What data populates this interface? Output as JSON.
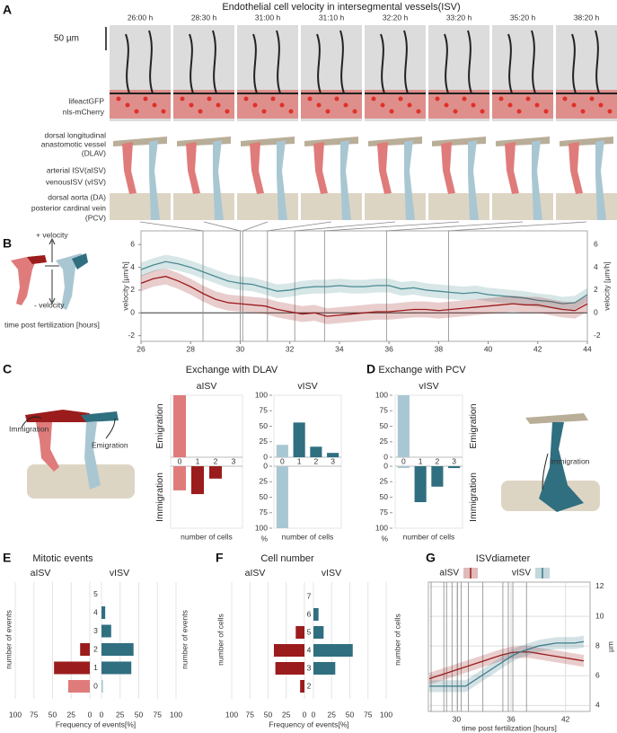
{
  "figure": {
    "title": "Endothelial cell velocity  in intersegmental vessels(ISV)",
    "panel_labels": [
      "A",
      "B",
      "C",
      "D",
      "E",
      "F",
      "G"
    ],
    "time_labels": [
      "26:00 h",
      "28:30 h",
      "31:00 h",
      "31:10 h",
      "32:20 h",
      "33:20 h",
      "35:20 h",
      "38:20 h"
    ],
    "scale_bar": "50 µm",
    "channels": [
      {
        "label": "lifeactGFP",
        "color": "#333333"
      },
      {
        "label": "nls-mCherry",
        "color": "#e0302a"
      }
    ],
    "schematic_labels": [
      "dorsal longitudinal",
      "anastomotic vessel",
      "(DLAV)",
      "arterial ISV(aISV)",
      "venousISV  (vISV)",
      "dorsal aorta (DA)",
      "posterior cardinal vein",
      "(PCV)"
    ],
    "c_annotations": [
      "Immigration",
      "Emigration"
    ],
    "d_annotation": "Immigration"
  },
  "chart_data": [
    {
      "type": "line",
      "x": [
        26,
        26.5,
        27,
        27.5,
        28,
        28.5,
        29,
        29.5,
        30,
        30.5,
        31,
        31.5,
        32,
        32.5,
        33,
        33.5,
        34,
        34.5,
        35,
        35.5,
        36,
        36.5,
        37,
        37.5,
        38,
        38.5,
        39,
        39.5,
        40,
        40.5,
        41,
        41.5,
        42,
        42.5,
        43,
        43.5,
        44
      ],
      "xlim": [
        26,
        44
      ],
      "xticks": [
        26,
        28,
        30,
        32,
        34,
        36,
        38,
        40,
        42,
        44
      ],
      "ylim": [
        -2.5,
        7.2
      ],
      "yticks": [
        -2,
        0,
        2,
        4,
        6
      ],
      "ylabel": "velocity [µm/h]",
      "xlabel": "time post fertilization [hours]",
      "annotations": [
        "+ velocity",
        "- velocity"
      ],
      "markers": [
        28.5,
        30,
        30.1,
        31.1,
        32.2,
        33.4,
        35.9,
        38.4
      ],
      "series": [
        {
          "color": "#4a8b92",
          "error": 0.6,
          "values": [
            3.8,
            4.2,
            4.5,
            4.3,
            4.0,
            3.6,
            3.2,
            2.8,
            2.6,
            2.5,
            2.2,
            1.9,
            2.0,
            2.2,
            2.3,
            2.3,
            2.4,
            2.3,
            2.3,
            2.4,
            2.4,
            2.1,
            2.2,
            2.0,
            1.9,
            1.8,
            1.7,
            1.8,
            1.6,
            1.5,
            1.4,
            1.3,
            1.1,
            1.0,
            0.8,
            0.9,
            1.6
          ]
        },
        {
          "color": "#9b1c1c",
          "error": 0.7,
          "values": [
            2.6,
            3.0,
            3.2,
            2.8,
            2.3,
            1.7,
            1.2,
            0.9,
            0.8,
            0.7,
            0.6,
            0.3,
            0.1,
            -0.1,
            0.0,
            -0.3,
            -0.2,
            -0.1,
            0.0,
            0.1,
            0.1,
            0.2,
            0.3,
            0.3,
            0.2,
            0.3,
            0.4,
            0.5,
            0.6,
            0.7,
            0.8,
            0.7,
            0.7,
            0.5,
            0.3,
            0.2,
            0.8
          ]
        }
      ]
    },
    {
      "type": "mirrored-bar",
      "title": "Exchange with DLAV",
      "ylim": [
        0,
        100
      ],
      "yticks": [
        0,
        25,
        50,
        75,
        100
      ],
      "ylabel": "%",
      "xlabel": "number of cells",
      "panels": [
        {
          "title": "aISV",
          "categories": [
            0,
            1,
            2,
            3
          ],
          "series": [
            {
              "name": "Emigration",
              "values": [
                100,
                0,
                0,
                0
              ],
              "colors": [
                "#e07b7b",
                "#9b1c1c",
                "#9b1c1c",
                "#9b1c1c"
              ]
            },
            {
              "name": "Immigration",
              "values": [
                39,
                45,
                20,
                0
              ],
              "colors": [
                "#e07b7b",
                "#9b1c1c",
                "#9b1c1c",
                "#9b1c1c"
              ]
            }
          ]
        },
        {
          "title": "vISV",
          "categories": [
            0,
            1,
            2,
            3
          ],
          "series": [
            {
              "name": "Emigration",
              "values": [
                20,
                56,
                17,
                7
              ],
              "colors": [
                "#a9c7d2",
                "#2f6f80",
                "#2f6f80",
                "#2f6f80"
              ]
            },
            {
              "name": "Immigration",
              "values": [
                100,
                0,
                0,
                0
              ],
              "colors": [
                "#a9c7d2",
                "#2f6f80",
                "#2f6f80",
                "#2f6f80"
              ]
            }
          ]
        }
      ]
    },
    {
      "type": "mirrored-bar",
      "title": "Exchange with PCV",
      "ylim": [
        0,
        100
      ],
      "yticks": [
        0,
        25,
        50,
        75,
        100
      ],
      "ylabel": "%",
      "xlabel": "number of cells",
      "panels": [
        {
          "title": "vISV",
          "categories": [
            0,
            1,
            2,
            3
          ],
          "series": [
            {
              "name": "Emigration",
              "values": [
                100,
                0,
                0,
                0
              ],
              "colors": [
                "#a9c7d2",
                "#2f6f80",
                "#2f6f80",
                "#2f6f80"
              ]
            },
            {
              "name": "Immigration",
              "values": [
                3,
                58,
                33,
                3
              ],
              "colors": [
                "#a9c7d2",
                "#2f6f80",
                "#2f6f80",
                "#2f6f80"
              ]
            }
          ]
        }
      ]
    },
    {
      "type": "butterfly-bar",
      "title": "Mitotic events",
      "categories": [
        0,
        1,
        2,
        3,
        4,
        5
      ],
      "xlim": [
        0,
        100
      ],
      "xticks": [
        0,
        25,
        50,
        75,
        100
      ],
      "xlabel": "Frequency of events[%]",
      "ylabel": "number of events",
      "grid": true,
      "series": [
        {
          "name": "aISV",
          "values": [
            29,
            48,
            13,
            0,
            0,
            0
          ],
          "colors": [
            "#e07b7b",
            "#9b1c1c",
            "#9b1c1c",
            "#9b1c1c",
            "#9b1c1c",
            "#9b1c1c"
          ]
        },
        {
          "name": "vISV",
          "values": [
            2,
            40,
            43,
            13,
            5,
            0
          ],
          "colors": [
            "#a9c7d2",
            "#2f6f80",
            "#2f6f80",
            "#2f6f80",
            "#2f6f80",
            "#2f6f80"
          ]
        }
      ]
    },
    {
      "type": "butterfly-bar",
      "title": "Cell number",
      "categories": [
        2,
        3,
        4,
        5,
        6,
        7
      ],
      "xlim": [
        0,
        100
      ],
      "xticks": [
        0,
        25,
        50,
        75,
        100
      ],
      "xlabel": "Frequency of events[%]",
      "ylabel": "number of cells",
      "grid": true,
      "series": [
        {
          "name": "aISV",
          "values": [
            6,
            40,
            42,
            12,
            0,
            0
          ],
          "colors": [
            "#9b1c1c",
            "#9b1c1c",
            "#9b1c1c",
            "#9b1c1c",
            "#9b1c1c",
            "#9b1c1c"
          ]
        },
        {
          "name": "vISV",
          "values": [
            0,
            30,
            54,
            14,
            7,
            0
          ],
          "colors": [
            "#2f6f80",
            "#2f6f80",
            "#2f6f80",
            "#2f6f80",
            "#2f6f80",
            "#2f6f80"
          ]
        }
      ]
    },
    {
      "type": "line",
      "title": "ISVdiameter",
      "x": [
        27,
        28,
        29,
        30,
        31,
        32,
        33,
        34,
        35,
        36,
        37,
        38,
        39,
        40,
        41,
        42,
        43,
        44
      ],
      "xlim": [
        26.9,
        44.7
      ],
      "xticks": [
        30,
        36,
        42
      ],
      "ylim": [
        3.6,
        12.3
      ],
      "yticks": [
        4,
        6,
        8,
        10,
        12
      ],
      "ylabel": "µm",
      "xlabel": "time post fertilization [hours]",
      "legend": "top",
      "grid": true,
      "markers": [
        27.2,
        28.6,
        28.9,
        29.5,
        30.1,
        30.5,
        31.3,
        32.9,
        35.1,
        35.7,
        36.2,
        37.7
      ],
      "series": [
        {
          "name": "aISV",
          "color": "#9b1c1c",
          "error": 0.4,
          "values": [
            5.8,
            6.0,
            6.2,
            6.4,
            6.6,
            6.8,
            7.0,
            7.2,
            7.4,
            7.55,
            7.6,
            7.6,
            7.5,
            7.4,
            7.3,
            7.2,
            7.1,
            7.0
          ]
        },
        {
          "name": "vISV",
          "color": "#3a7a8a",
          "error": 0.4,
          "values": [
            5.3,
            5.3,
            5.3,
            5.3,
            5.3,
            5.7,
            6.1,
            6.5,
            6.9,
            7.3,
            7.6,
            7.8,
            8.0,
            8.1,
            8.2,
            8.2,
            8.2,
            8.3
          ]
        }
      ]
    }
  ]
}
